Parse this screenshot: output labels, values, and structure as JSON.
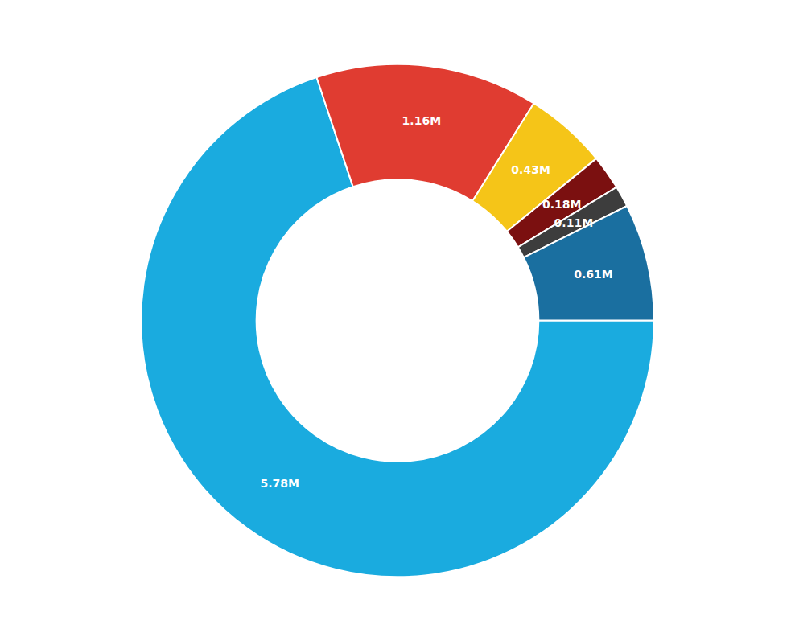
{
  "chart_data": {
    "type": "pie",
    "values": [
      5.78,
      1.16,
      0.43,
      0.18,
      0.11,
      0.61
    ],
    "value_labels": [
      "5.78M",
      "1.16M",
      "0.43M",
      "0.18M",
      "0.11M",
      "0.61M"
    ],
    "colors": [
      "#1AABDF",
      "#E03C31",
      "#F5C518",
      "#7B1010",
      "#3D3D3D",
      "#1A6FA0"
    ],
    "data_labels": true
  }
}
